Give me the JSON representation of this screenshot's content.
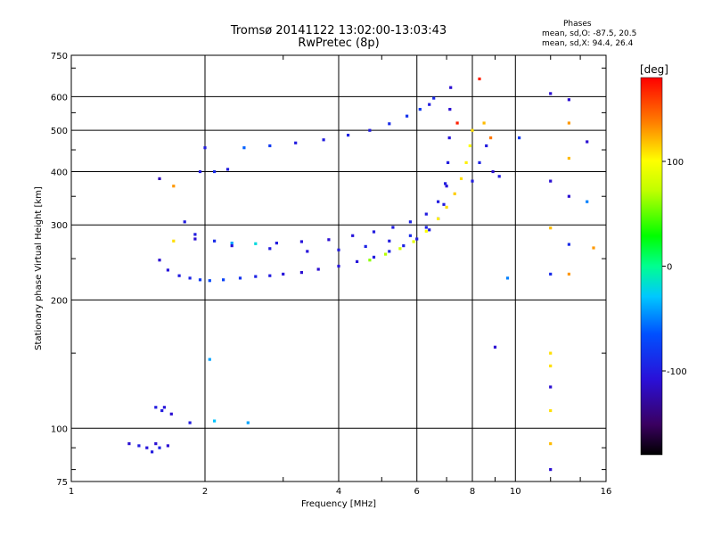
{
  "header": {
    "title": "Tromsø 20141122 13:02:00-13:03:43",
    "subtitle": "RwPretec (8p)",
    "phase_title": "Phases",
    "phase_line1": "mean, sd,O:  -87.5, 20.5",
    "phase_line2": "mean, sd,X:   94.4, 26.4"
  },
  "colorbar": {
    "label": "[deg]",
    "min": -180,
    "max": 180,
    "ticks": [
      {
        "value": 100,
        "label": "100"
      },
      {
        "value": 0,
        "label": "0"
      },
      {
        "value": -100,
        "label": "-100"
      }
    ]
  },
  "chart_data": {
    "type": "scatter",
    "xlabel": "Frequency [MHz]",
    "ylabel": "Stationary phase Virtual Height [km]",
    "xscale": "log",
    "yscale": "log",
    "xlim": [
      1,
      16
    ],
    "ylim": [
      75,
      750
    ],
    "xticks": [
      {
        "value": 1,
        "label": "1"
      },
      {
        "value": 2,
        "label": "2"
      },
      {
        "value": 4,
        "label": "4"
      },
      {
        "value": 6,
        "label": "6"
      },
      {
        "value": 8,
        "label": "8"
      },
      {
        "value": 10,
        "label": "10"
      },
      {
        "value": 16,
        "label": "16"
      }
    ],
    "xgrid": [
      2,
      4,
      6,
      8,
      10
    ],
    "yticks": [
      {
        "value": 75,
        "label": "75"
      },
      {
        "value": 100,
        "label": "100"
      },
      {
        "value": 200,
        "label": "200"
      },
      {
        "value": 300,
        "label": "300"
      },
      {
        "value": 400,
        "label": "400"
      },
      {
        "value": 500,
        "label": "500"
      },
      {
        "value": 600,
        "label": "600"
      },
      {
        "value": 750,
        "label": "750"
      }
    ],
    "ygrid": [
      100,
      200,
      300,
      400,
      500,
      600
    ],
    "grid": true,
    "color_by": "phase [deg]",
    "series": [
      {
        "points": [
          [
            1.58,
            248,
            -110
          ],
          [
            1.65,
            235,
            -105
          ],
          [
            1.75,
            228,
            -100
          ],
          [
            1.85,
            225,
            -95
          ],
          [
            1.95,
            223,
            -80
          ],
          [
            2.05,
            222,
            -70
          ],
          [
            2.2,
            223,
            -75
          ],
          [
            2.4,
            225,
            -85
          ],
          [
            2.6,
            227,
            -95
          ],
          [
            2.8,
            228,
            -100
          ],
          [
            3.0,
            230,
            -105
          ],
          [
            3.3,
            232,
            -110
          ],
          [
            3.6,
            236,
            -110
          ],
          [
            4.0,
            240,
            -105
          ],
          [
            4.4,
            246,
            -105
          ],
          [
            4.8,
            252,
            -100
          ],
          [
            5.2,
            260,
            -95
          ],
          [
            5.6,
            268,
            -95
          ],
          [
            6.0,
            278,
            -100
          ],
          [
            6.4,
            292,
            -100
          ],
          [
            6.7,
            310,
            -95
          ],
          [
            6.9,
            335,
            -100
          ],
          [
            7.0,
            370,
            -105
          ],
          [
            7.05,
            420,
            -100
          ],
          [
            7.1,
            480,
            -105
          ],
          [
            7.12,
            560,
            -110
          ],
          [
            7.15,
            630,
            -110
          ]
        ]
      },
      {
        "points": [
          [
            1.8,
            305,
            -100
          ],
          [
            1.9,
            285,
            -100
          ],
          [
            2.1,
            275,
            -90
          ],
          [
            2.3,
            272,
            -40
          ],
          [
            2.6,
            271,
            -20
          ],
          [
            2.9,
            272,
            -100
          ],
          [
            3.3,
            274,
            -105
          ],
          [
            3.8,
            277,
            -110
          ],
          [
            4.3,
            283,
            -105
          ],
          [
            4.8,
            289,
            -100
          ],
          [
            5.3,
            296,
            -100
          ],
          [
            5.8,
            305,
            -95
          ],
          [
            6.3,
            318,
            -100
          ],
          [
            6.7,
            340,
            -100
          ],
          [
            6.95,
            375,
            -100
          ]
        ]
      },
      {
        "points": [
          [
            1.9,
            278,
            -110
          ],
          [
            2.3,
            268,
            -105
          ],
          [
            2.8,
            264,
            -100
          ],
          [
            3.4,
            260,
            -105
          ],
          [
            4.0,
            262,
            -100
          ],
          [
            4.6,
            267,
            -95
          ],
          [
            5.2,
            275,
            -100
          ],
          [
            5.8,
            283,
            -90
          ],
          [
            6.3,
            296,
            -95
          ]
        ]
      },
      {
        "points": [
          [
            2.45,
            455,
            -60
          ],
          [
            2.8,
            460,
            -80
          ],
          [
            3.2,
            467,
            -100
          ],
          [
            3.7,
            475,
            -100
          ],
          [
            4.2,
            487,
            -95
          ],
          [
            4.7,
            500,
            -100
          ],
          [
            5.2,
            518,
            -90
          ],
          [
            5.7,
            540,
            -85
          ],
          [
            6.1,
            560,
            -80
          ],
          [
            6.4,
            575,
            -100
          ],
          [
            6.55,
            595,
            -90
          ]
        ]
      },
      {
        "points": [
          [
            4.7,
            248,
            60
          ],
          [
            5.1,
            256,
            70
          ],
          [
            5.5,
            264,
            80
          ],
          [
            5.9,
            274,
            90
          ],
          [
            6.3,
            290,
            100
          ],
          [
            6.7,
            310,
            105
          ],
          [
            7.0,
            330,
            110
          ],
          [
            7.3,
            355,
            115
          ],
          [
            7.55,
            385,
            110
          ],
          [
            7.75,
            420,
            105
          ],
          [
            7.9,
            460,
            100
          ],
          [
            8.0,
            500,
            110
          ]
        ]
      },
      {
        "points": [
          [
            8.0,
            380,
            -100
          ],
          [
            8.3,
            420,
            -95
          ],
          [
            8.6,
            460,
            -100
          ],
          [
            8.9,
            400,
            -110
          ],
          [
            9.2,
            390,
            -100
          ],
          [
            8.5,
            520,
            120
          ],
          [
            8.8,
            480,
            140
          ],
          [
            7.4,
            520,
            170
          ],
          [
            8.3,
            660,
            170
          ]
        ]
      },
      {
        "points": [
          [
            1.35,
            92,
            -110
          ],
          [
            1.42,
            91,
            -100
          ],
          [
            1.48,
            90,
            -105
          ],
          [
            1.55,
            92,
            -110
          ],
          [
            1.52,
            88,
            -100
          ],
          [
            1.58,
            90,
            -95
          ],
          [
            1.65,
            91,
            -110
          ],
          [
            1.55,
            112,
            -100
          ],
          [
            1.62,
            112,
            -105
          ],
          [
            1.6,
            110,
            -100
          ],
          [
            1.68,
            108,
            -110
          ],
          [
            1.85,
            103,
            -100
          ],
          [
            2.1,
            104,
            -30
          ],
          [
            2.5,
            103,
            -40
          ],
          [
            1.58,
            385,
            -120
          ],
          [
            1.7,
            370,
            130
          ],
          [
            1.95,
            400,
            -100
          ],
          [
            2.1,
            400,
            -90
          ],
          [
            2.25,
            405,
            -100
          ],
          [
            2.0,
            455,
            -100
          ],
          [
            2.05,
            145,
            -40
          ],
          [
            1.7,
            275,
            110
          ],
          [
            9.0,
            155,
            -110
          ],
          [
            9.6,
            225,
            -50
          ]
        ]
      },
      {
        "points": [
          [
            12.0,
            610,
            -110
          ],
          [
            12.0,
            380,
            -110
          ],
          [
            12.0,
            295,
            120
          ],
          [
            12.0,
            230,
            -90
          ],
          [
            12.0,
            150,
            110
          ],
          [
            12.0,
            140,
            110
          ],
          [
            12.0,
            125,
            -110
          ],
          [
            12.0,
            110,
            110
          ],
          [
            12.0,
            92,
            120
          ],
          [
            12.0,
            80,
            -110
          ],
          [
            13.2,
            590,
            -110
          ],
          [
            13.2,
            520,
            130
          ],
          [
            13.2,
            430,
            120
          ],
          [
            13.2,
            350,
            -110
          ],
          [
            13.2,
            270,
            -90
          ],
          [
            13.2,
            230,
            130
          ],
          [
            14.5,
            470,
            -110
          ],
          [
            14.5,
            340,
            -50
          ],
          [
            15.0,
            265,
            130
          ],
          [
            10.2,
            480,
            -80
          ]
        ]
      }
    ]
  }
}
